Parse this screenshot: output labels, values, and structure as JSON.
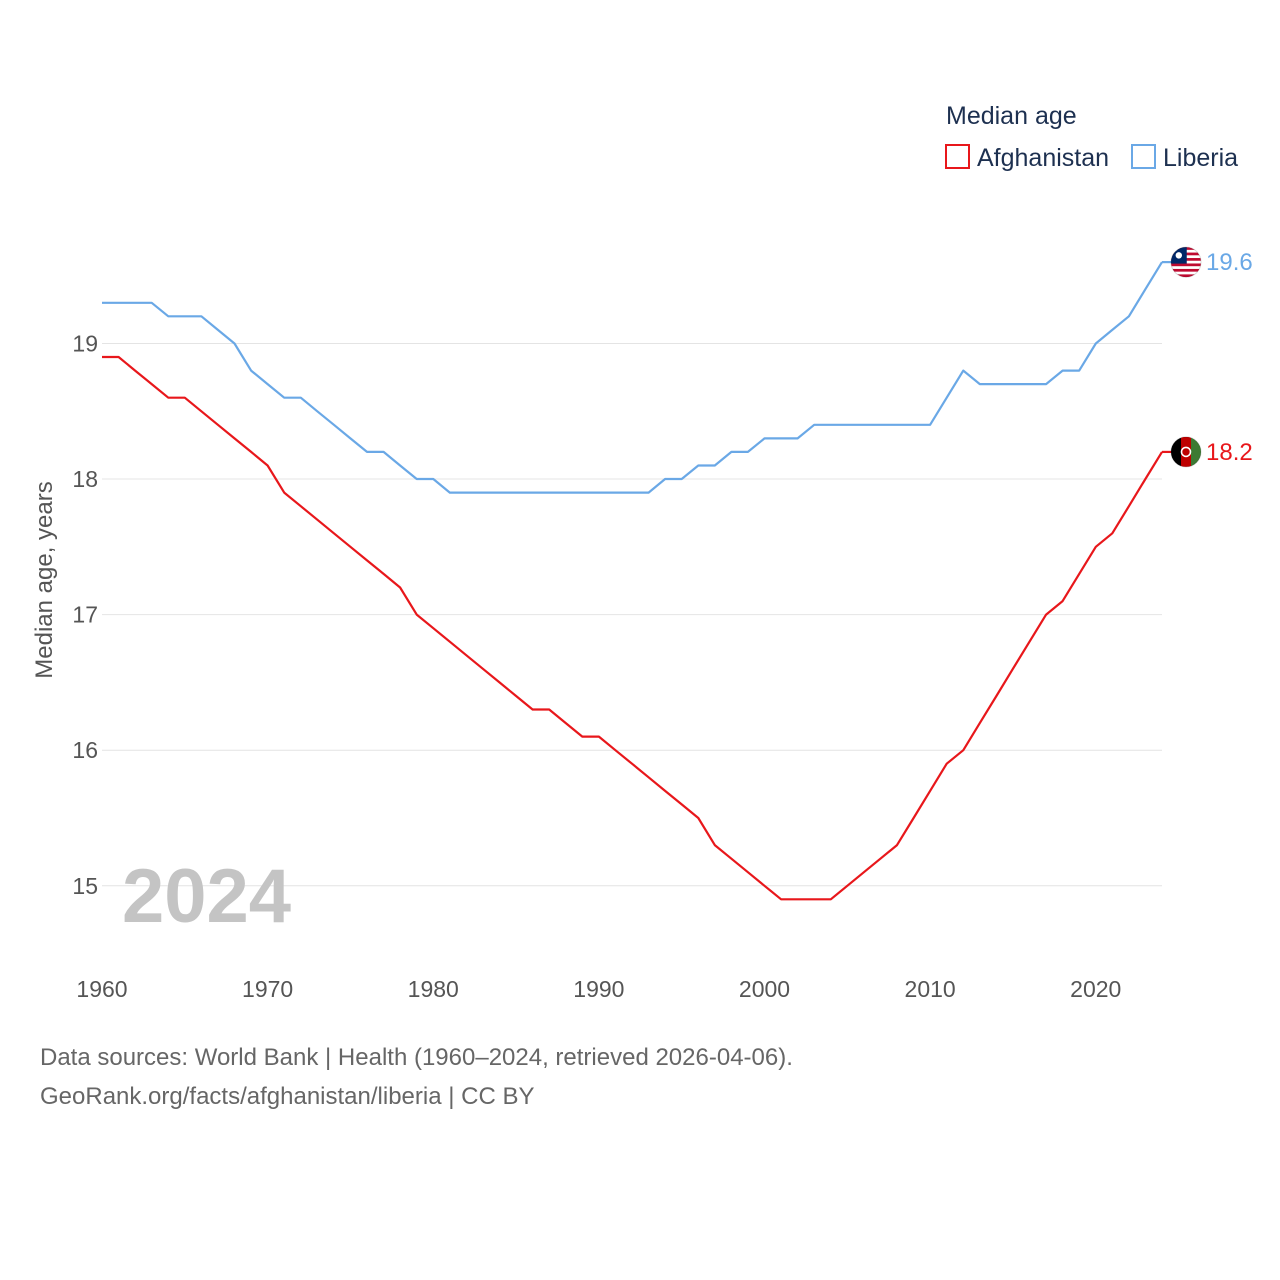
{
  "chart_data": {
    "type": "line",
    "title": "",
    "xlabel": "",
    "ylabel": "Median age, years",
    "xlim": [
      1960,
      2024
    ],
    "ylim": [
      14.6,
      19.8
    ],
    "xticks": [
      1960,
      1970,
      1980,
      1990,
      2000,
      2010,
      2020
    ],
    "yticks": [
      15,
      16,
      17,
      18,
      19
    ],
    "highlight_year": "2024",
    "legend": {
      "title": "Median age",
      "position": "top-right"
    },
    "x": [
      1960,
      1961,
      1962,
      1963,
      1964,
      1965,
      1966,
      1967,
      1968,
      1969,
      1970,
      1971,
      1972,
      1973,
      1974,
      1975,
      1976,
      1977,
      1978,
      1979,
      1980,
      1981,
      1982,
      1983,
      1984,
      1985,
      1986,
      1987,
      1988,
      1989,
      1990,
      1991,
      1992,
      1993,
      1994,
      1995,
      1996,
      1997,
      1998,
      1999,
      2000,
      2001,
      2002,
      2003,
      2004,
      2005,
      2006,
      2007,
      2008,
      2009,
      2010,
      2011,
      2012,
      2013,
      2014,
      2015,
      2016,
      2017,
      2018,
      2019,
      2020,
      2021,
      2022,
      2023,
      2024
    ],
    "series": [
      {
        "name": "Afghanistan",
        "color": "#e8171b",
        "end_label": "18.2",
        "values": [
          18.9,
          18.9,
          18.8,
          18.7,
          18.6,
          18.6,
          18.5,
          18.4,
          18.3,
          18.2,
          18.1,
          17.9,
          17.8,
          17.7,
          17.6,
          17.5,
          17.4,
          17.3,
          17.2,
          17.0,
          16.9,
          16.8,
          16.7,
          16.6,
          16.5,
          16.4,
          16.3,
          16.3,
          16.2,
          16.1,
          16.1,
          16.0,
          15.9,
          15.8,
          15.7,
          15.6,
          15.5,
          15.3,
          15.2,
          15.1,
          15.0,
          14.9,
          14.9,
          14.9,
          14.9,
          15.0,
          15.1,
          15.2,
          15.3,
          15.5,
          15.7,
          15.9,
          16.0,
          16.2,
          16.4,
          16.6,
          16.8,
          17.0,
          17.1,
          17.3,
          17.5,
          17.6,
          17.8,
          18.0,
          18.2
        ]
      },
      {
        "name": "Liberia",
        "color": "#6aa8e6",
        "end_label": "19.6",
        "values": [
          19.3,
          19.3,
          19.3,
          19.3,
          19.2,
          19.2,
          19.2,
          19.1,
          19.0,
          18.8,
          18.7,
          18.6,
          18.6,
          18.5,
          18.4,
          18.3,
          18.2,
          18.2,
          18.1,
          18.0,
          18.0,
          17.9,
          17.9,
          17.9,
          17.9,
          17.9,
          17.9,
          17.9,
          17.9,
          17.9,
          17.9,
          17.9,
          17.9,
          17.9,
          18.0,
          18.0,
          18.1,
          18.1,
          18.2,
          18.2,
          18.3,
          18.3,
          18.3,
          18.4,
          18.4,
          18.4,
          18.4,
          18.4,
          18.4,
          18.4,
          18.4,
          18.6,
          18.8,
          18.7,
          18.7,
          18.7,
          18.7,
          18.7,
          18.8,
          18.8,
          19.0,
          19.1,
          19.2,
          19.4,
          19.6
        ]
      }
    ]
  },
  "source": {
    "line1": "Data sources: World Bank | Health (1960–2024, retrieved 2026-04-06).",
    "line2": "GeoRank.org/facts/afghanistan/liberia | CC BY"
  }
}
